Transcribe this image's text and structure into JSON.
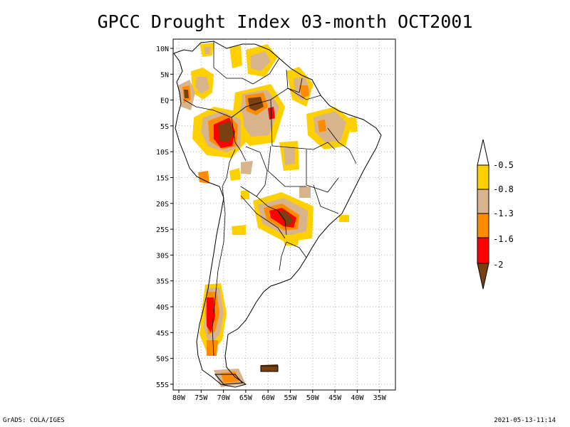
{
  "title": "GPCC Drought Index 03-month OCT2001",
  "lat_labels": [
    "10N",
    "5N",
    "EQ",
    "5S",
    "10S",
    "15S",
    "20S",
    "25S",
    "30S",
    "35S",
    "40S",
    "45S",
    "50S",
    "55S"
  ],
  "lon_labels": [
    "80W",
    "75W",
    "70W",
    "65W",
    "60W",
    "55W",
    "50W",
    "45W",
    "40W",
    "35W"
  ],
  "legend": {
    "levels": [
      "-0.5",
      "-0.8",
      "-1.3",
      "-1.6",
      "-2"
    ],
    "colors": {
      "above_-0.5": "#ffffff",
      "-0.8_to_-0.5": "#ffd000",
      "-1.3_to_-0.8": "#d7b48c",
      "-1.6_to_-1.3": "#ff8c00",
      "-2_to_-1.6": "#ff0000",
      "below_-2": "#7a4010"
    }
  },
  "footer": {
    "credit": "GrADS: COLA/IGES",
    "timestamp": "2021-05-13-11:14"
  }
}
